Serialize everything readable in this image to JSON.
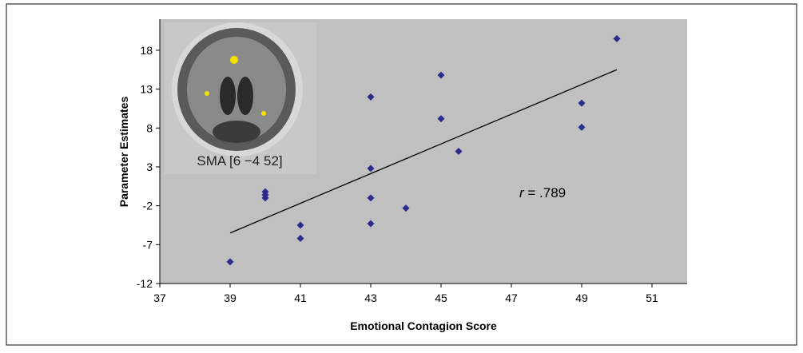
{
  "chart_data": {
    "type": "scatter",
    "x_label": "Emotional Contagion Score",
    "y_label": "Parameter Estimates",
    "xlim": [
      37,
      52
    ],
    "xticks": [
      37,
      39,
      41,
      43,
      45,
      47,
      49,
      51
    ],
    "ylim": [
      -12,
      22
    ],
    "yticks": [
      -12,
      -7,
      -2,
      3,
      8,
      13,
      18
    ],
    "color": "#2b2b8c",
    "x": [
      39,
      40,
      40,
      40,
      41,
      41,
      43,
      43,
      43,
      43,
      44,
      45,
      45,
      45.5,
      49,
      49,
      50
    ],
    "values": [
      -9.2,
      -0.2,
      -0.6,
      -1.0,
      -4.5,
      -6.2,
      12,
      2.8,
      -1,
      -4.3,
      -2.3,
      14.8,
      9.2,
      5,
      11.2,
      8.1,
      19.5
    ],
    "fit": {
      "x": [
        39,
        50
      ],
      "y": [
        -5.5,
        15.5
      ]
    },
    "annotation": {
      "italic": "r",
      "text": " = .789"
    },
    "inset_caption": "SMA [6 −4 52]"
  }
}
